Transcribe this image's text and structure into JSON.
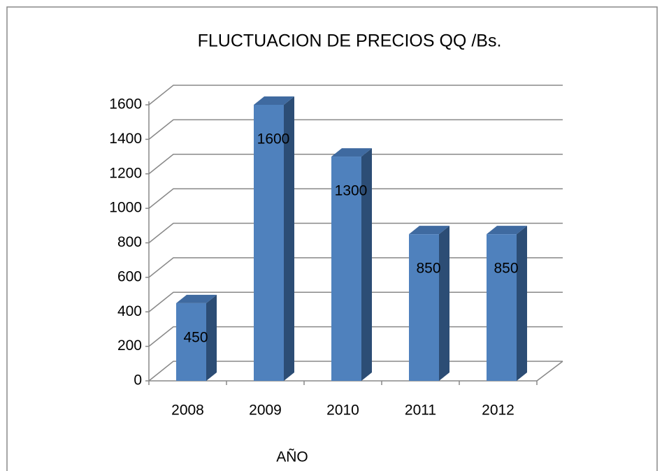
{
  "chart_data": {
    "type": "bar3d",
    "title": "FLUCTUACION DE PRECIOS  QQ /Bs.",
    "x_label": "AÑO",
    "categories": [
      "2008",
      "2009",
      "2010",
      "2011",
      "2012"
    ],
    "values": [
      450,
      1600,
      1300,
      850,
      850
    ],
    "color": "#4f81bd",
    "ylim": [
      0,
      1600
    ],
    "yticks": [
      0,
      200,
      400,
      600,
      800,
      1000,
      1200,
      1400,
      1600
    ],
    "grid": true
  }
}
